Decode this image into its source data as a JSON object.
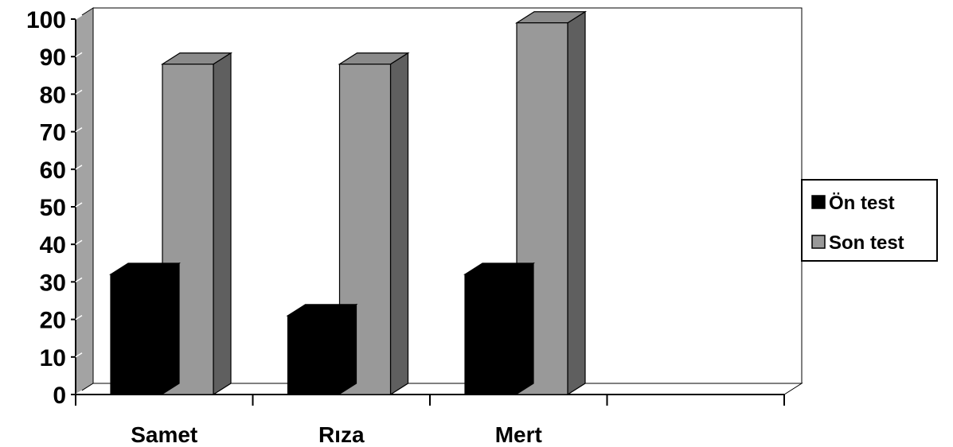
{
  "chart_data": {
    "type": "bar",
    "categories": [
      "Samet",
      "Rıza",
      "Mert"
    ],
    "series": [
      {
        "name": "Ön test",
        "values": [
          32,
          21,
          32
        ],
        "color": "#000000"
      },
      {
        "name": "Son test",
        "values": [
          88,
          88,
          99
        ],
        "color": "#999999"
      }
    ],
    "ylim": [
      0,
      100
    ],
    "yticks": [
      0,
      10,
      20,
      30,
      40,
      50,
      60,
      70,
      80,
      90,
      100
    ],
    "legend": "right",
    "grid": false,
    "style": "3d"
  }
}
